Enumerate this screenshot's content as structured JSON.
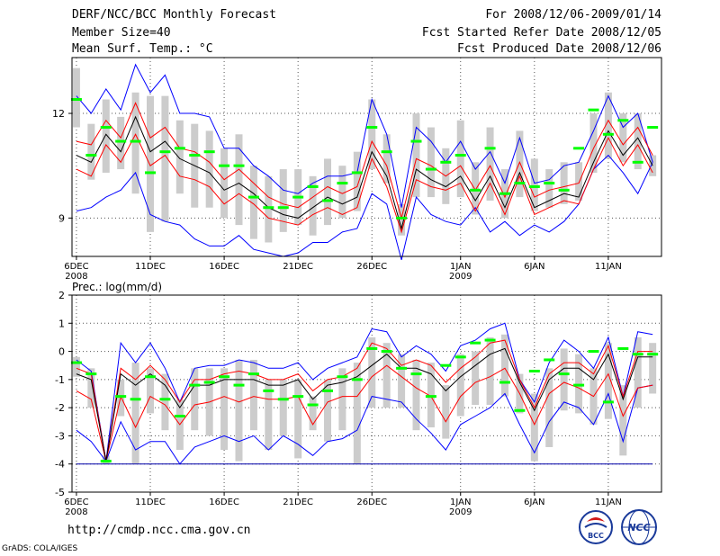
{
  "header": {
    "title": "DERF/NCC/BCC Monthly Forecast",
    "member": "Member Size=40",
    "variable": "Mean Surf. Temp.: °C",
    "for_period": "For 2008/12/06-2009/01/14",
    "started": "Fcst Started Refer Date 2008/12/05",
    "produced": "Fcst Produced Date 2008/12/06"
  },
  "footer": {
    "url": "http://cmdp.ncc.cma.gov.cn",
    "credit": "GrADS: COLA/IGES",
    "logo1": "BCC",
    "logo2": "NCC"
  },
  "colors": {
    "ens_max_min": "#0000ff",
    "ens_spread": "#ff0000",
    "ens_mean": "#000000",
    "member_median": "#00ff00",
    "box": "#cccccc"
  },
  "chart_data": [
    {
      "type": "box",
      "name": "temperature",
      "title": "",
      "ylabel": "Mean Surf. Temp.: °C",
      "ylim": [
        7.9,
        13.6
      ],
      "yticks": [
        9,
        12
      ],
      "xlim": [
        5.7,
        45.6
      ],
      "xticks": [
        {
          "x": 6,
          "label": "6DEC",
          "sub": "2008"
        },
        {
          "x": 11,
          "label": "11DEC",
          "sub": ""
        },
        {
          "x": 16,
          "label": "16DEC",
          "sub": ""
        },
        {
          "x": 21,
          "label": "21DEC",
          "sub": ""
        },
        {
          "x": 26,
          "label": "26DEC",
          "sub": ""
        },
        {
          "x": 32,
          "label": "1JAN",
          "sub": "2009"
        },
        {
          "x": 37,
          "label": "6JAN",
          "sub": ""
        },
        {
          "x": 42,
          "label": "11JAN",
          "sub": ""
        }
      ],
      "days": [
        6,
        7,
        8,
        9,
        10,
        11,
        12,
        13,
        14,
        15,
        16,
        17,
        18,
        19,
        20,
        21,
        22,
        23,
        24,
        25,
        26,
        27,
        28,
        29,
        30,
        31,
        32,
        33,
        34,
        35,
        36,
        37,
        38,
        39,
        40,
        41,
        42,
        43,
        44,
        45
      ],
      "max": [
        12.5,
        12.0,
        12.7,
        12.1,
        13.4,
        12.6,
        13.1,
        12.0,
        12.0,
        11.9,
        11.0,
        11.0,
        10.5,
        10.2,
        9.8,
        9.7,
        10.0,
        10.2,
        10.2,
        10.3,
        12.4,
        11.4,
        9.3,
        11.6,
        11.2,
        10.6,
        11.2,
        10.4,
        10.9,
        10.0,
        11.3,
        10.0,
        10.1,
        10.5,
        10.6,
        11.5,
        12.5,
        11.6,
        12.0,
        10.6
      ],
      "ens_upper": [
        11.2,
        11.1,
        11.8,
        11.3,
        12.3,
        11.3,
        11.6,
        11.0,
        10.9,
        10.6,
        10.1,
        10.4,
        10.0,
        9.6,
        9.4,
        9.3,
        9.6,
        9.9,
        9.7,
        9.9,
        11.2,
        10.5,
        9.0,
        10.7,
        10.5,
        10.2,
        10.5,
        9.8,
        10.5,
        9.6,
        10.6,
        9.6,
        9.8,
        9.9,
        10.0,
        11.0,
        11.8,
        11.1,
        11.6,
        10.8
      ],
      "mean": [
        10.8,
        10.6,
        11.4,
        10.9,
        11.9,
        10.9,
        11.2,
        10.7,
        10.5,
        10.3,
        9.8,
        10.0,
        9.7,
        9.3,
        9.1,
        9.0,
        9.3,
        9.6,
        9.4,
        9.6,
        10.9,
        10.2,
        8.7,
        10.4,
        10.1,
        9.9,
        10.2,
        9.5,
        10.2,
        9.3,
        10.3,
        9.3,
        9.5,
        9.7,
        9.6,
        10.6,
        11.5,
        10.8,
        11.3,
        10.5
      ],
      "ens_lower": [
        10.4,
        10.2,
        11.1,
        10.6,
        11.4,
        10.5,
        10.8,
        10.2,
        10.1,
        9.9,
        9.4,
        9.7,
        9.4,
        9.0,
        8.9,
        8.8,
        9.1,
        9.3,
        9.1,
        9.3,
        10.7,
        9.9,
        8.6,
        10.1,
        9.9,
        9.8,
        10.0,
        9.2,
        10.0,
        9.1,
        10.2,
        9.1,
        9.3,
        9.5,
        9.4,
        10.4,
        11.3,
        10.5,
        11.1,
        10.3
      ],
      "min": [
        9.2,
        9.3,
        9.6,
        9.8,
        10.3,
        9.1,
        8.9,
        8.8,
        8.4,
        8.2,
        8.2,
        8.5,
        8.1,
        8.0,
        7.9,
        8.0,
        8.3,
        8.3,
        8.6,
        8.7,
        9.7,
        9.4,
        7.8,
        9.6,
        9.1,
        8.9,
        8.8,
        9.3,
        8.6,
        8.9,
        8.5,
        8.8,
        8.6,
        8.9,
        9.4,
        10.4,
        10.8,
        10.3,
        9.7,
        10.6
      ],
      "box_high": [
        13.3,
        11.7,
        12.4,
        11.9,
        12.6,
        12.5,
        12.5,
        11.8,
        11.7,
        11.5,
        11.0,
        11.4,
        10.5,
        10.2,
        10.4,
        10.4,
        10.2,
        10.7,
        10.5,
        10.9,
        12.4,
        11.4,
        9.4,
        12.0,
        11.6,
        11.0,
        11.8,
        10.6,
        11.6,
        10.4,
        11.5,
        10.7,
        10.4,
        10.6,
        10.6,
        12.0,
        12.6,
        12.0,
        12.0,
        10.8
      ],
      "box_low": [
        11.6,
        10.1,
        10.3,
        10.4,
        9.7,
        8.6,
        8.9,
        9.7,
        9.3,
        9.3,
        9.0,
        8.8,
        8.4,
        8.3,
        8.6,
        8.8,
        8.5,
        8.8,
        9.0,
        9.2,
        10.4,
        10.0,
        8.5,
        9.6,
        9.6,
        9.4,
        9.6,
        9.1,
        9.5,
        9.0,
        9.6,
        9.2,
        9.3,
        9.4,
        9.5,
        10.3,
        10.7,
        10.6,
        10.4,
        10.2
      ],
      "median": [
        12.4,
        10.8,
        11.6,
        11.2,
        11.2,
        10.3,
        10.9,
        11.0,
        10.8,
        10.9,
        10.5,
        10.5,
        9.6,
        9.3,
        9.3,
        9.6,
        9.9,
        9.5,
        10.0,
        10.3,
        11.6,
        10.9,
        9.0,
        11.2,
        10.4,
        10.6,
        10.8,
        9.8,
        11.0,
        9.7,
        10.0,
        9.9,
        10.0,
        9.8,
        11.0,
        12.1,
        11.4,
        11.8,
        10.6,
        11.6
      ]
    },
    {
      "type": "box",
      "name": "precipitation",
      "title": "Prec.: log(mm/d)",
      "ylabel": "Prec.: log(mm/d)",
      "ylim": [
        -5,
        2
      ],
      "yticks": [
        -5,
        -4,
        -3,
        -2,
        -1,
        0,
        1,
        2
      ],
      "xlim": [
        5.7,
        45.6
      ],
      "baseline": -4,
      "xticks": [
        {
          "x": 6,
          "label": "6DEC",
          "sub": "2008"
        },
        {
          "x": 11,
          "label": "11DEC",
          "sub": ""
        },
        {
          "x": 16,
          "label": "16DEC",
          "sub": ""
        },
        {
          "x": 21,
          "label": "21DEC",
          "sub": ""
        },
        {
          "x": 26,
          "label": "26DEC",
          "sub": ""
        },
        {
          "x": 32,
          "label": "1JAN",
          "sub": "2009"
        },
        {
          "x": 37,
          "label": "6JAN",
          "sub": ""
        },
        {
          "x": 42,
          "label": "11JAN",
          "sub": ""
        }
      ],
      "days": [
        6,
        7,
        8,
        9,
        10,
        11,
        12,
        13,
        14,
        15,
        16,
        17,
        18,
        19,
        20,
        21,
        22,
        23,
        24,
        25,
        26,
        27,
        28,
        29,
        30,
        31,
        32,
        33,
        34,
        35,
        36,
        37,
        38,
        39,
        40,
        41,
        42,
        43,
        44,
        45
      ],
      "max": [
        -0.3,
        -0.7,
        -3.9,
        0.3,
        -0.4,
        0.3,
        -0.6,
        -1.8,
        -0.6,
        -0.5,
        -0.5,
        -0.3,
        -0.4,
        -0.6,
        -0.6,
        -0.4,
        -1.0,
        -0.6,
        -0.4,
        -0.2,
        0.8,
        0.7,
        -0.2,
        0.2,
        -0.1,
        -0.7,
        0.2,
        0.4,
        0.8,
        1.0,
        -1.0,
        -1.8,
        -0.4,
        0.4,
        0.0,
        -0.6,
        0.5,
        -1.6,
        0.7,
        0.6
      ],
      "ens_upper": [
        -0.6,
        -0.8,
        -3.9,
        -0.6,
        -1.0,
        -0.5,
        -1.0,
        -1.8,
        -1.0,
        -1.0,
        -0.8,
        -0.7,
        -0.8,
        -1.0,
        -1.0,
        -0.8,
        -1.4,
        -1.0,
        -0.9,
        -0.6,
        0.3,
        0.1,
        -0.5,
        -0.3,
        -0.5,
        -1.1,
        -0.6,
        -0.2,
        0.3,
        0.4,
        -1.0,
        -2.0,
        -0.8,
        -0.4,
        -0.4,
        -0.8,
        0.2,
        -1.6,
        0.0,
        0.0
      ],
      "mean": [
        -0.8,
        -1.0,
        -3.9,
        -0.8,
        -1.2,
        -0.8,
        -1.2,
        -2.0,
        -1.2,
        -1.2,
        -1.0,
        -1.0,
        -1.0,
        -1.2,
        -1.2,
        -1.0,
        -1.7,
        -1.2,
        -1.1,
        -0.9,
        -0.5,
        -0.1,
        -0.6,
        -0.6,
        -0.8,
        -1.4,
        -0.9,
        -0.5,
        -0.1,
        0.1,
        -1.1,
        -2.1,
        -1.0,
        -0.6,
        -0.6,
        -1.0,
        -0.1,
        -1.7,
        -0.2,
        -0.2
      ],
      "ens_lower": [
        -1.4,
        -1.7,
        -3.9,
        -1.6,
        -2.7,
        -1.6,
        -1.9,
        -2.6,
        -1.9,
        -1.8,
        -1.6,
        -1.8,
        -1.6,
        -1.7,
        -1.7,
        -1.6,
        -2.6,
        -1.8,
        -1.6,
        -1.6,
        -0.9,
        -0.5,
        -0.9,
        -1.3,
        -1.6,
        -2.5,
        -1.6,
        -1.1,
        -0.9,
        -0.6,
        -1.5,
        -2.6,
        -1.5,
        -1.1,
        -1.3,
        -1.6,
        -0.8,
        -2.3,
        -1.3,
        -1.2
      ],
      "min": [
        -2.8,
        -3.2,
        -3.9,
        -2.5,
        -3.5,
        -3.2,
        -3.2,
        -4.0,
        -3.4,
        -3.2,
        -3.0,
        -3.2,
        -3.0,
        -3.5,
        -3.0,
        -3.3,
        -3.7,
        -3.2,
        -3.1,
        -2.8,
        -1.6,
        -1.7,
        -1.8,
        -2.4,
        -2.9,
        -3.5,
        -2.6,
        -2.3,
        -2.0,
        -1.5,
        -2.6,
        -3.6,
        -2.5,
        -1.8,
        -2.0,
        -2.6,
        -1.5,
        -3.2,
        -1.3,
        -1.2
      ],
      "box_high": [
        -0.2,
        -0.6,
        -3.7,
        -1.0,
        -0.4,
        -0.6,
        -0.8,
        -1.7,
        -0.6,
        -0.6,
        -0.6,
        -0.3,
        -0.3,
        -1.0,
        -1.0,
        -1.0,
        -1.6,
        -1.0,
        -0.6,
        -0.4,
        0.5,
        0.3,
        -0.1,
        -0.3,
        -0.4,
        -1.2,
        -0.1,
        0.0,
        0.5,
        0.6,
        -0.8,
        -1.5,
        -0.6,
        0.1,
        -0.1,
        -0.6,
        0.3,
        -1.2,
        0.5,
        0.3
      ],
      "box_low": [
        -0.9,
        -2.0,
        -4.0,
        -2.3,
        -4.0,
        -2.2,
        -2.8,
        -3.5,
        -2.8,
        -3.0,
        -3.5,
        -3.9,
        -2.8,
        -3.5,
        -3.0,
        -3.8,
        -2.8,
        -3.2,
        -2.8,
        -4.0,
        -2.0,
        -2.0,
        -2.0,
        -2.8,
        -2.7,
        -3.1,
        -2.3,
        -1.9,
        -1.9,
        -1.6,
        -2.2,
        -3.9,
        -3.4,
        -2.1,
        -2.2,
        -2.6,
        -2.4,
        -3.7,
        -2.0,
        -1.5
      ],
      "median": [
        -0.4,
        -0.8,
        -3.9,
        -1.6,
        -1.7,
        -0.9,
        -1.7,
        -2.3,
        -1.2,
        -1.1,
        -0.9,
        -1.2,
        -0.8,
        -1.4,
        -1.7,
        -1.6,
        -1.9,
        -1.4,
        -0.9,
        -1.0,
        0.1,
        0.0,
        -0.6,
        -0.8,
        -1.6,
        -0.5,
        -0.2,
        0.3,
        0.4,
        -1.1,
        -2.1,
        -0.7,
        -0.3,
        -0.8,
        -1.2,
        0.0,
        -1.8,
        0.1,
        -0.1,
        -0.1
      ]
    }
  ]
}
